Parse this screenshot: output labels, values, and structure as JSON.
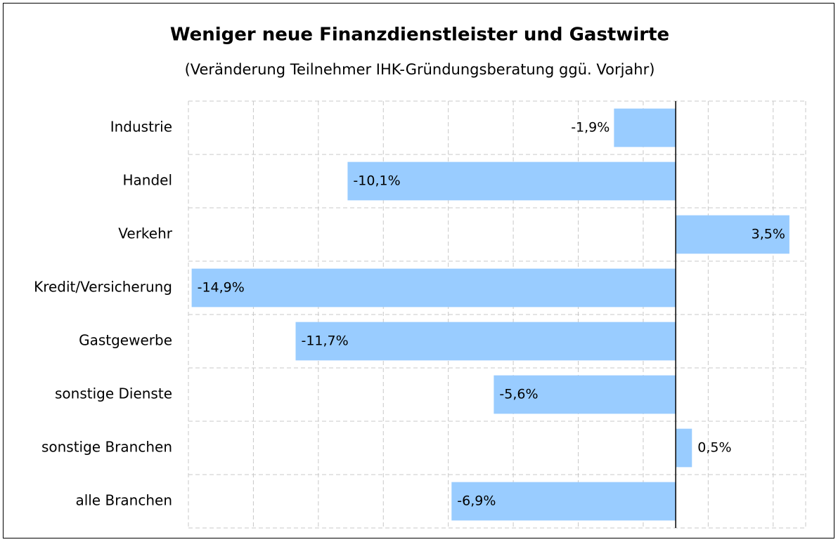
{
  "chart_data": {
    "type": "bar",
    "orientation": "horizontal",
    "title": "Weniger neue Finanzdienstleister und Gastwirte",
    "subtitle": "(Veränderung Teilnehmer IHK-Gründungsberatung ggü. Vorjahr)",
    "categories": [
      "Industrie",
      "Handel",
      "Verkehr",
      "Kredit/Versicherung",
      "Gastgewerbe",
      "sonstige Dienste",
      "sonstige Branchen",
      "alle Branchen"
    ],
    "values": [
      -1.9,
      -10.1,
      3.5,
      -14.9,
      -11.7,
      -5.6,
      0.5,
      -6.9
    ],
    "value_labels": [
      "-1,9%",
      "-10,1%",
      "3,5%",
      "-14,9%",
      "-11,7%",
      "-5,6%",
      "0,5%",
      "-6,9%"
    ],
    "color": "#99ccff",
    "xlim": [
      -15,
      4
    ],
    "xticks": [
      -15,
      -13,
      -11,
      -9,
      -7,
      -5,
      -3,
      -1,
      1,
      3
    ],
    "grid": true
  }
}
